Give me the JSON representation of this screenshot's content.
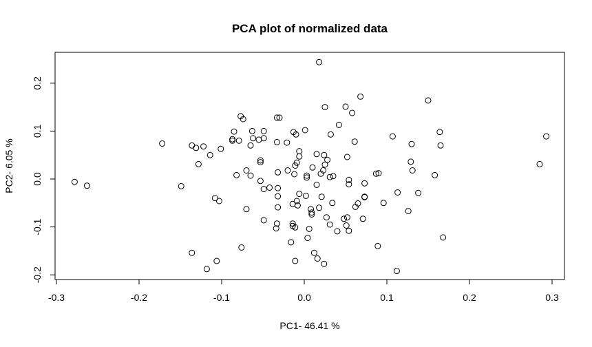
{
  "chart_data": {
    "type": "scatter",
    "title": "PCA plot of normalized data",
    "xlabel": "PC1- 46.41 %",
    "ylabel": "PC2- 6.05 %",
    "xlim": [
      -0.3,
      0.32
    ],
    "ylim": [
      -0.21,
      0.26
    ],
    "x_ticks": [
      -0.3,
      -0.2,
      -0.1,
      0.0,
      0.1,
      0.2,
      0.3
    ],
    "x_tick_labels": [
      "-0.3",
      "-0.2",
      "-0.1",
      "0.0",
      "0.1",
      "0.2",
      "0.3"
    ],
    "y_ticks": [
      -0.2,
      -0.1,
      0.0,
      0.1,
      0.2
    ],
    "y_tick_labels": [
      "-0.2",
      "-0.1",
      "0.0",
      "0.1",
      "0.2"
    ],
    "grid": false,
    "legend": "none",
    "marker": "open-circle",
    "points": [
      [
        0.018,
        0.244
      ],
      [
        0.068,
        0.172
      ],
      [
        0.15,
        0.164
      ],
      [
        0.025,
        0.15
      ],
      [
        0.05,
        0.151
      ],
      [
        0.058,
        0.138
      ],
      [
        -0.077,
        0.131
      ],
      [
        -0.074,
        0.125
      ],
      [
        -0.033,
        0.128
      ],
      [
        -0.03,
        0.128
      ],
      [
        0.042,
        0.113
      ],
      [
        -0.063,
        0.1
      ],
      [
        -0.049,
        0.1
      ],
      [
        -0.013,
        0.098
      ],
      [
        -0.01,
        0.093
      ],
      [
        0.001,
        0.102
      ],
      [
        0.032,
        0.093
      ],
      [
        -0.085,
        0.099
      ],
      [
        0.107,
        0.089
      ],
      [
        0.164,
        0.098
      ],
      [
        0.293,
        0.089
      ],
      [
        -0.087,
        0.083
      ],
      [
        -0.087,
        0.08
      ],
      [
        -0.062,
        0.085
      ],
      [
        -0.049,
        0.085
      ],
      [
        -0.055,
        0.082
      ],
      [
        -0.079,
        0.08
      ],
      [
        -0.065,
        0.07
      ],
      [
        -0.033,
        0.077
      ],
      [
        -0.021,
        0.076
      ],
      [
        0.061,
        0.078
      ],
      [
        0.13,
        0.073
      ],
      [
        0.165,
        0.07
      ],
      [
        -0.172,
        0.074
      ],
      [
        -0.136,
        0.07
      ],
      [
        -0.131,
        0.065
      ],
      [
        -0.122,
        0.068
      ],
      [
        -0.101,
        0.063
      ],
      [
        -0.114,
        0.05
      ],
      [
        -0.006,
        0.058
      ],
      [
        -0.006,
        0.047
      ],
      [
        0.015,
        0.052
      ],
      [
        0.024,
        0.05
      ],
      [
        0.052,
        0.046
      ],
      [
        -0.053,
        0.039
      ],
      [
        -0.053,
        0.035
      ],
      [
        -0.128,
        0.031
      ],
      [
        -0.009,
        0.034
      ],
      [
        0.028,
        0.04
      ],
      [
        0.025,
        0.03
      ],
      [
        0.129,
        0.036
      ],
      [
        0.285,
        0.031
      ],
      [
        -0.07,
        0.018
      ],
      [
        -0.065,
        0.007
      ],
      [
        -0.032,
        0.014
      ],
      [
        -0.02,
        0.018
      ],
      [
        -0.011,
        0.028
      ],
      [
        0.01,
        0.024
      ],
      [
        0.023,
        0.018
      ],
      [
        0.131,
        0.018
      ],
      [
        -0.082,
        0.008
      ],
      [
        -0.012,
        0.01
      ],
      [
        0.003,
        0.007
      ],
      [
        0.003,
        0.003
      ],
      [
        0.02,
        0.011
      ],
      [
        0.031,
        0.004
      ],
      [
        0.035,
        0.006
      ],
      [
        0.087,
        0.011
      ],
      [
        0.09,
        0.012
      ],
      [
        0.158,
        0.008
      ],
      [
        -0.278,
        -0.006
      ],
      [
        -0.263,
        -0.014
      ],
      [
        -0.149,
        -0.015
      ],
      [
        -0.053,
        -0.004
      ],
      [
        -0.049,
        -0.021
      ],
      [
        -0.042,
        -0.018
      ],
      [
        -0.032,
        -0.019
      ],
      [
        0.015,
        -0.012
      ],
      [
        0.054,
        -0.002
      ],
      [
        0.054,
        -0.011
      ],
      [
        0.073,
        -0.009
      ],
      [
        -0.032,
        -0.036
      ],
      [
        -0.006,
        -0.031
      ],
      [
        0.002,
        -0.035
      ],
      [
        0.021,
        -0.037
      ],
      [
        0.073,
        -0.038
      ],
      [
        0.073,
        -0.037
      ],
      [
        0.113,
        -0.028
      ],
      [
        0.138,
        -0.029
      ],
      [
        -0.108,
        -0.04
      ],
      [
        -0.103,
        -0.046
      ],
      [
        -0.032,
        -0.059
      ],
      [
        -0.014,
        -0.052
      ],
      [
        -0.009,
        -0.046
      ],
      [
        -0.008,
        -0.055
      ],
      [
        0.008,
        -0.063
      ],
      [
        0.018,
        -0.06
      ],
      [
        0.034,
        -0.05
      ],
      [
        0.062,
        -0.058
      ],
      [
        0.065,
        -0.051
      ],
      [
        0.096,
        -0.05
      ],
      [
        -0.07,
        -0.063
      ],
      [
        0.126,
        -0.067
      ],
      [
        0.009,
        -0.07
      ],
      [
        0.009,
        -0.074
      ],
      [
        0.027,
        -0.08
      ],
      [
        0.048,
        -0.083
      ],
      [
        0.052,
        -0.08
      ],
      [
        0.071,
        -0.083
      ],
      [
        -0.049,
        -0.086
      ],
      [
        -0.033,
        -0.093
      ],
      [
        -0.014,
        -0.093
      ],
      [
        -0.014,
        -0.098
      ],
      [
        -0.011,
        -0.101
      ],
      [
        0.031,
        -0.095
      ],
      [
        0.051,
        -0.097
      ],
      [
        0.04,
        -0.109
      ],
      [
        0.054,
        -0.108
      ],
      [
        -0.034,
        -0.103
      ],
      [
        0.006,
        -0.104
      ],
      [
        0.004,
        -0.123
      ],
      [
        -0.016,
        -0.132
      ],
      [
        0.168,
        -0.122
      ],
      [
        -0.076,
        -0.143
      ],
      [
        0.089,
        -0.14
      ],
      [
        -0.136,
        -0.154
      ],
      [
        0.012,
        -0.154
      ],
      [
        0.016,
        -0.166
      ],
      [
        -0.106,
        -0.171
      ],
      [
        -0.011,
        -0.171
      ],
      [
        0.024,
        -0.177
      ],
      [
        -0.118,
        -0.188
      ],
      [
        0.112,
        -0.192
      ]
    ]
  }
}
